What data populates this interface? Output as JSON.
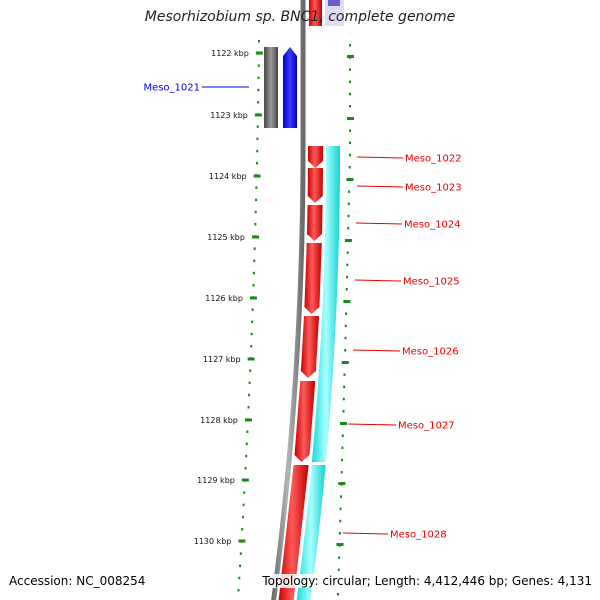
{
  "title": "Mesorhizobium sp. BNC1, complete genome",
  "footer": {
    "accession": "Accession: NC_008254",
    "topology": "Topology: circular; Length: 4,412,446 bp; Genes: 4,131"
  },
  "colors": {
    "backbone": "#8a8a8a",
    "forward_gene": "#0000ee",
    "reverse_gene": "#ee0000",
    "cds": "#00e5e5",
    "other_feature": "#666666",
    "tick": "#1a8a1a"
  },
  "scale": {
    "ticks": [
      {
        "label": "1122 kbp"
      },
      {
        "label": "1123 kbp"
      },
      {
        "label": "1124 kbp"
      },
      {
        "label": "1125 kbp"
      },
      {
        "label": "1126 kbp"
      },
      {
        "label": "1127 kbp"
      },
      {
        "label": "1128 kbp"
      },
      {
        "label": "1129 kbp"
      },
      {
        "label": "1130 kbp"
      }
    ]
  },
  "genes": [
    {
      "label": "Meso_1021",
      "strand": "forward"
    },
    {
      "label": "Meso_1022",
      "strand": "reverse"
    },
    {
      "label": "Meso_1023",
      "strand": "reverse"
    },
    {
      "label": "Meso_1024",
      "strand": "reverse"
    },
    {
      "label": "Meso_1025",
      "strand": "reverse"
    },
    {
      "label": "Meso_1026",
      "strand": "reverse"
    },
    {
      "label": "Meso_1027",
      "strand": "reverse"
    },
    {
      "label": "Meso_1028",
      "strand": "reverse"
    }
  ]
}
